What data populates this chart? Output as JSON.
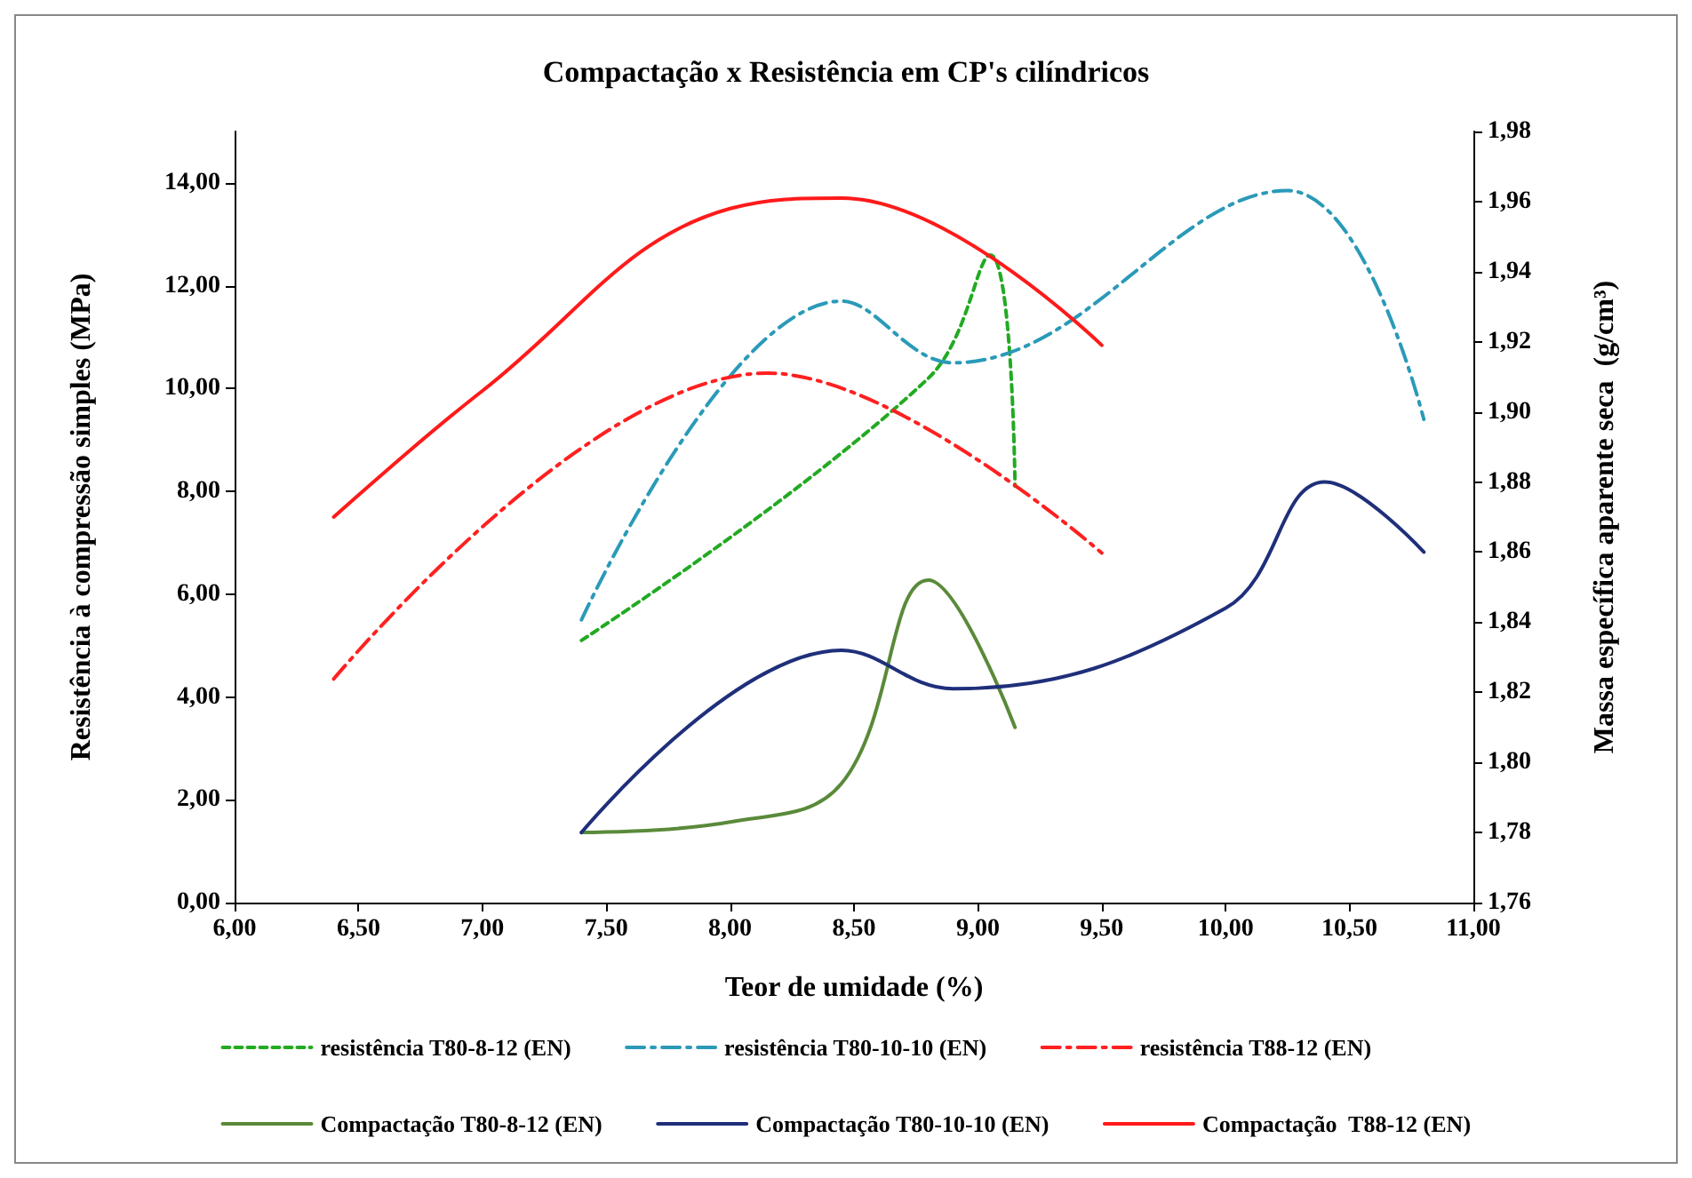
{
  "chart_data": {
    "type": "line",
    "title": "Compactação x Resistência em CP's cilíndricos",
    "xlabel": "Teor de umidade (%)",
    "ylabel": "Resistência à compressão simples (MPa)",
    "y2label": "Massa específica aparente seca  (g/cm³)",
    "xlim": [
      6,
      11
    ],
    "xticks": [
      {
        "value": 6,
        "label": "6,00"
      },
      {
        "value": 6.5,
        "label": "6,50"
      },
      {
        "value": 7,
        "label": "7,00"
      },
      {
        "value": 7.5,
        "label": "7,50"
      },
      {
        "value": 8,
        "label": "8,00"
      },
      {
        "value": 8.5,
        "label": "8,50"
      },
      {
        "value": 9,
        "label": "9,00"
      },
      {
        "value": 9.5,
        "label": "9,50"
      },
      {
        "value": 10,
        "label": "10,00"
      },
      {
        "value": 10.5,
        "label": "10,50"
      },
      {
        "value": 11,
        "label": "11,00"
      }
    ],
    "ylim": [
      0,
      15
    ],
    "yticks": [
      {
        "value": 0,
        "label": "0,00"
      },
      {
        "value": 2,
        "label": "2,00"
      },
      {
        "value": 4,
        "label": "4,00"
      },
      {
        "value": 6,
        "label": "6,00"
      },
      {
        "value": 8,
        "label": "8,00"
      },
      {
        "value": 10,
        "label": "10,00"
      },
      {
        "value": 12,
        "label": "12,00"
      },
      {
        "value": 14,
        "label": "14,00"
      }
    ],
    "y2lim": [
      1.76,
      1.98
    ],
    "y2ticks": [
      {
        "value": 1.76,
        "label": "1,76"
      },
      {
        "value": 1.78,
        "label": "1,78"
      },
      {
        "value": 1.8,
        "label": "1,80"
      },
      {
        "value": 1.82,
        "label": "1,82"
      },
      {
        "value": 1.84,
        "label": "1,84"
      },
      {
        "value": 1.86,
        "label": "1,86"
      },
      {
        "value": 1.88,
        "label": "1,88"
      },
      {
        "value": 1.9,
        "label": "1,90"
      },
      {
        "value": 1.92,
        "label": "1,92"
      },
      {
        "value": 1.94,
        "label": "1,94"
      },
      {
        "value": 1.96,
        "label": "1,96"
      },
      {
        "value": 1.98,
        "label": "1,98"
      }
    ],
    "grid": false,
    "legend": "bottom",
    "marker": "none",
    "series": [
      {
        "name": "resistência T80-8-12 (EN)",
        "color": "#22aa22",
        "line_style": "dashed",
        "x": [
          7.4,
          8.8,
          9.05,
          9.15
        ],
        "values": [
          5.1,
          10.2,
          12.6,
          8.1
        ]
      },
      {
        "name": "resistência T80-10-10 (EN)",
        "color": "#2a9ab8",
        "line_style": "dashdot",
        "x": [
          7.4,
          8.45,
          8.9,
          10.25,
          10.8
        ],
        "values": [
          5.5,
          11.7,
          10.5,
          13.85,
          9.4
        ]
      },
      {
        "name": "resistência T88-12 (EN)",
        "color": "#ff2020",
        "line_style": "dashdot",
        "x": [
          6.4,
          8.15,
          9.5
        ],
        "values": [
          4.35,
          10.3,
          6.8
        ]
      },
      {
        "name": "Compactação T80-8-12 (EN)",
        "color": "#5a8a3a",
        "line_style": "solid",
        "axis": "y2",
        "x": [
          7.4,
          8.0,
          8.45,
          8.8,
          9.15
        ],
        "values": [
          1.78,
          1.783,
          1.794,
          1.852,
          1.81
        ]
      },
      {
        "name": "Compactação T80-10-10 (EN)",
        "color": "#1f2f7a",
        "line_style": "solid",
        "axis": "y2",
        "x": [
          7.4,
          8.45,
          8.9,
          10.0,
          10.4,
          10.8
        ],
        "values": [
          1.78,
          1.832,
          1.821,
          1.844,
          1.88,
          1.86
        ]
      },
      {
        "name": "Compactação  T88-12 (EN)",
        "color": "#ff1a1a",
        "line_style": "solid",
        "axis": "y2",
        "x": [
          6.4,
          7.0,
          8.0,
          8.45,
          9.5
        ],
        "values": [
          1.87,
          1.906,
          1.958,
          1.961,
          1.919
        ]
      }
    ]
  }
}
